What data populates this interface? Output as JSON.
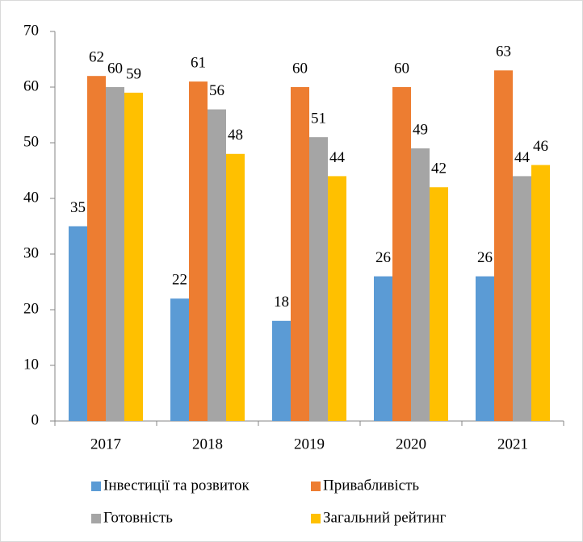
{
  "chart_data": {
    "type": "bar",
    "categories": [
      "2017",
      "2018",
      "2019",
      "2020",
      "2021"
    ],
    "series": [
      {
        "name": "Інвестиції та розвиток",
        "color": "#5b9bd5",
        "values": [
          35,
          22,
          18,
          26,
          26
        ]
      },
      {
        "name": "Привабливість",
        "color": "#ed7d31",
        "values": [
          62,
          61,
          60,
          60,
          63
        ]
      },
      {
        "name": "Готовність",
        "color": "#a5a5a5",
        "values": [
          60,
          56,
          51,
          49,
          44
        ]
      },
      {
        "name": "Загальний рейтинг",
        "color": "#ffc000",
        "values": [
          59,
          48,
          44,
          42,
          46
        ]
      }
    ],
    "ylim": [
      0,
      70
    ],
    "yticks": [
      0,
      10,
      20,
      30,
      40,
      50,
      60,
      70
    ],
    "grid": false,
    "legend": "bottom"
  }
}
